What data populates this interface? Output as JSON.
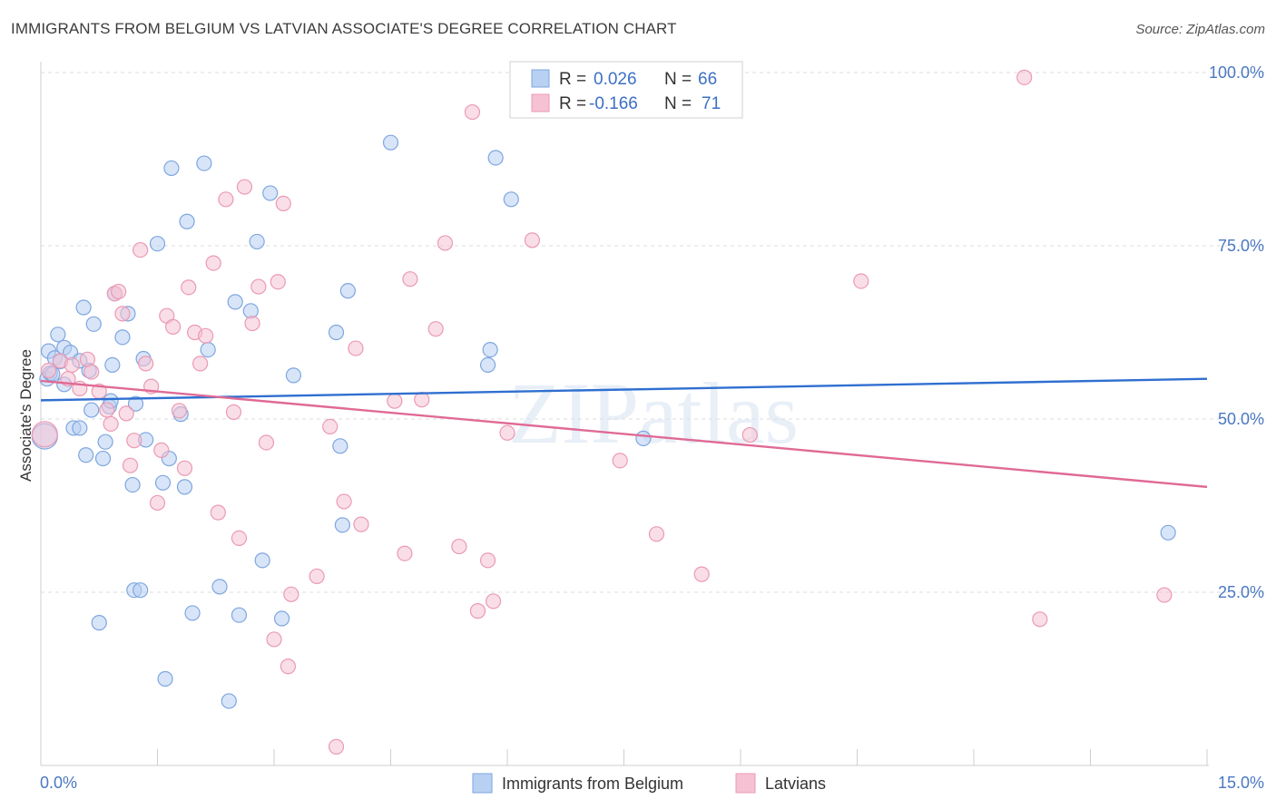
{
  "header": {
    "title": "IMMIGRANTS FROM BELGIUM VS LATVIAN ASSOCIATE'S DEGREE CORRELATION CHART",
    "source": "Source: ZipAtlas.com"
  },
  "watermark": "ZIPatlas",
  "colors": {
    "blue_fill": "#b8d0f2",
    "blue_stroke": "#7ea6e0",
    "blue_line": "#2f6fd0",
    "pink_fill": "#f6c2d3",
    "pink_stroke": "#ea9ab4",
    "pink_line": "#e06a95",
    "axis_text": "#4a78c2",
    "grid": "#dcdcdc"
  },
  "legend": {
    "rows": [
      {
        "r_label": "R =",
        "r_value": "0.026",
        "n_label": "N =",
        "n_value": "66"
      },
      {
        "r_label": "R =",
        "r_value": "-0.166",
        "n_label": "N =",
        "n_value": "71"
      }
    ]
  },
  "chart_data": {
    "type": "scatter",
    "title": "IMMIGRANTS FROM BELGIUM VS LATVIAN ASSOCIATE'S DEGREE CORRELATION CHART",
    "xlabel": "",
    "ylabel": "Associate's Degree",
    "xlim": [
      0,
      15
    ],
    "ylim": [
      0,
      100
    ],
    "x_tick_labels": [
      "0.0%",
      "15.0%"
    ],
    "y_ticks": [
      25,
      50,
      75,
      100
    ],
    "y_tick_labels": [
      "25.0%",
      "50.0%",
      "75.0%",
      "100.0%"
    ],
    "grid": true,
    "legend_position": "top-center",
    "series": [
      {
        "name": "Immigrants from Belgium",
        "color": "#b8d0f2",
        "trend": {
          "x": [
            0,
            15
          ],
          "y": [
            52.7,
            55.8
          ]
        },
        "points": [
          [
            0.08,
            55.8
          ],
          [
            0.1,
            59.8
          ],
          [
            0.12,
            56.6
          ],
          [
            0.18,
            58.8
          ],
          [
            0.22,
            62.2
          ],
          [
            0.25,
            58.3
          ],
          [
            0.3,
            60.3
          ],
          [
            0.3,
            55.0
          ],
          [
            0.38,
            59.6
          ],
          [
            0.42,
            48.7
          ],
          [
            0.5,
            58.4
          ],
          [
            0.5,
            48.7
          ],
          [
            0.55,
            66.1
          ],
          [
            0.58,
            44.8
          ],
          [
            0.62,
            57.0
          ],
          [
            0.65,
            51.3
          ],
          [
            0.68,
            63.7
          ],
          [
            0.75,
            20.6
          ],
          [
            0.8,
            44.3
          ],
          [
            0.83,
            46.7
          ],
          [
            0.88,
            51.8
          ],
          [
            0.9,
            52.6
          ],
          [
            0.92,
            57.8
          ],
          [
            0.95,
            68.1
          ],
          [
            1.05,
            61.8
          ],
          [
            1.12,
            65.2
          ],
          [
            1.18,
            40.5
          ],
          [
            1.2,
            25.3
          ],
          [
            1.22,
            52.2
          ],
          [
            1.28,
            25.3
          ],
          [
            1.32,
            58.7
          ],
          [
            1.35,
            47.0
          ],
          [
            1.5,
            75.3
          ],
          [
            1.57,
            40.8
          ],
          [
            1.6,
            12.5
          ],
          [
            1.65,
            44.3
          ],
          [
            1.68,
            86.2
          ],
          [
            1.8,
            50.7
          ],
          [
            1.85,
            40.2
          ],
          [
            1.88,
            78.5
          ],
          [
            1.95,
            22.0
          ],
          [
            2.1,
            86.9
          ],
          [
            2.15,
            60.0
          ],
          [
            2.3,
            25.8
          ],
          [
            2.42,
            9.3
          ],
          [
            2.5,
            66.9
          ],
          [
            2.55,
            21.7
          ],
          [
            2.7,
            65.6
          ],
          [
            2.78,
            75.6
          ],
          [
            2.85,
            29.6
          ],
          [
            2.95,
            82.6
          ],
          [
            3.1,
            21.2
          ],
          [
            3.25,
            56.3
          ],
          [
            3.8,
            62.5
          ],
          [
            3.85,
            46.1
          ],
          [
            3.88,
            34.7
          ],
          [
            3.95,
            68.5
          ],
          [
            4.5,
            89.9
          ],
          [
            5.75,
            57.8
          ],
          [
            5.78,
            60.0
          ],
          [
            5.85,
            87.7
          ],
          [
            6.05,
            81.7
          ],
          [
            7.75,
            47.2
          ],
          [
            14.5,
            33.6
          ],
          [
            0.05,
            47.5
          ],
          [
            0.15,
            56.5
          ]
        ]
      },
      {
        "name": "Latvians",
        "color": "#f6c2d3",
        "trend": {
          "x": [
            0,
            15
          ],
          "y": [
            55.5,
            40.2
          ]
        },
        "points": [
          [
            0.05,
            47.8
          ],
          [
            0.1,
            57.0
          ],
          [
            0.25,
            58.4
          ],
          [
            0.35,
            55.8
          ],
          [
            0.5,
            54.4
          ],
          [
            0.6,
            58.6
          ],
          [
            0.65,
            56.8
          ],
          [
            0.75,
            54.0
          ],
          [
            0.85,
            51.3
          ],
          [
            0.9,
            49.3
          ],
          [
            0.95,
            68.1
          ],
          [
            1.0,
            68.4
          ],
          [
            1.05,
            65.2
          ],
          [
            1.15,
            43.3
          ],
          [
            1.2,
            46.9
          ],
          [
            1.28,
            74.4
          ],
          [
            1.35,
            58.0
          ],
          [
            1.42,
            54.7
          ],
          [
            1.5,
            37.9
          ],
          [
            1.55,
            45.5
          ],
          [
            1.62,
            64.9
          ],
          [
            1.7,
            63.3
          ],
          [
            1.78,
            51.2
          ],
          [
            1.85,
            42.9
          ],
          [
            1.9,
            69.0
          ],
          [
            1.98,
            62.5
          ],
          [
            2.05,
            58.0
          ],
          [
            2.12,
            62.0
          ],
          [
            2.22,
            72.5
          ],
          [
            2.28,
            36.5
          ],
          [
            2.38,
            81.7
          ],
          [
            2.48,
            51.0
          ],
          [
            2.55,
            32.8
          ],
          [
            2.62,
            83.5
          ],
          [
            2.72,
            63.8
          ],
          [
            2.8,
            69.1
          ],
          [
            2.9,
            46.6
          ],
          [
            3.0,
            18.2
          ],
          [
            3.05,
            69.8
          ],
          [
            3.12,
            81.1
          ],
          [
            3.18,
            14.3
          ],
          [
            3.22,
            24.7
          ],
          [
            3.55,
            27.3
          ],
          [
            3.72,
            48.9
          ],
          [
            3.8,
            2.7
          ],
          [
            3.9,
            38.1
          ],
          [
            4.05,
            60.2
          ],
          [
            4.12,
            34.8
          ],
          [
            4.55,
            52.6
          ],
          [
            4.68,
            30.6
          ],
          [
            4.75,
            70.2
          ],
          [
            4.9,
            52.8
          ],
          [
            5.08,
            63.0
          ],
          [
            5.2,
            75.4
          ],
          [
            5.38,
            31.6
          ],
          [
            5.55,
            94.3
          ],
          [
            5.62,
            22.3
          ],
          [
            5.75,
            29.6
          ],
          [
            5.82,
            23.7
          ],
          [
            6.0,
            48.0
          ],
          [
            6.32,
            75.8
          ],
          [
            7.45,
            44.0
          ],
          [
            7.92,
            33.4
          ],
          [
            8.5,
            27.6
          ],
          [
            9.12,
            47.7
          ],
          [
            10.55,
            69.9
          ],
          [
            12.65,
            99.3
          ],
          [
            12.85,
            21.1
          ],
          [
            14.45,
            24.6
          ],
          [
            0.4,
            57.8
          ],
          [
            1.1,
            50.8
          ]
        ]
      }
    ]
  }
}
